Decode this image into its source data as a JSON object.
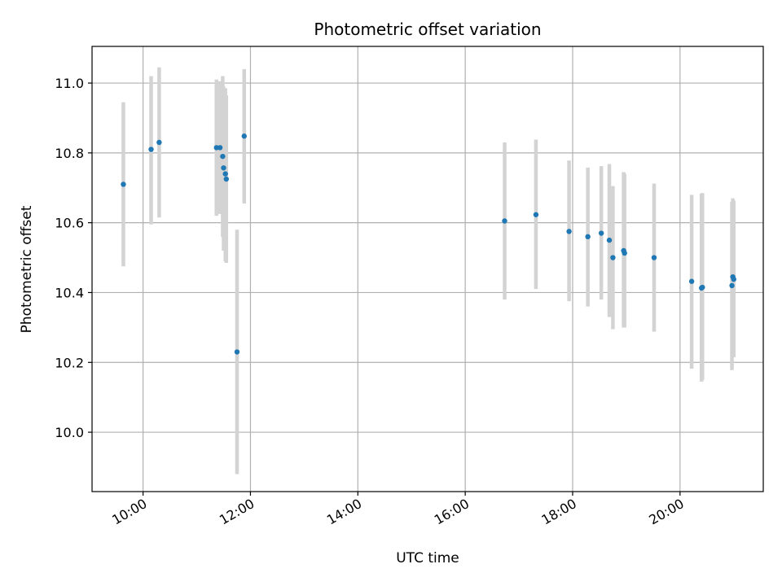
{
  "chart_data": {
    "type": "scatter",
    "title": "Photometric offset variation",
    "xlabel": "UTC time",
    "ylabel": "Photometric offset",
    "x_scale": "time",
    "xlim": [
      "09:03",
      "21:33"
    ],
    "ylim": [
      9.83,
      11.105
    ],
    "x_ticks": [
      "10:00",
      "12:00",
      "14:00",
      "16:00",
      "18:00",
      "20:00"
    ],
    "y_ticks": [
      10.0,
      10.2,
      10.4,
      10.6,
      10.8,
      11.0
    ],
    "grid": true,
    "legend": "none",
    "point_color": "#1f77b4",
    "errorbar_color": "#d3d3d3",
    "points": [
      {
        "t": "09:38",
        "y": 10.71,
        "lo": 10.475,
        "hi": 10.945
      },
      {
        "t": "10:09",
        "y": 10.81,
        "lo": 10.595,
        "hi": 11.02
      },
      {
        "t": "10:18",
        "y": 10.83,
        "lo": 10.615,
        "hi": 11.045
      },
      {
        "t": "11:22",
        "y": 10.815,
        "lo": 10.62,
        "hi": 11.01
      },
      {
        "t": "11:26",
        "y": 10.815,
        "lo": 10.625,
        "hi": 11.005
      },
      {
        "t": "11:29",
        "y": 10.79,
        "lo": 10.56,
        "hi": 11.02
      },
      {
        "t": "11:30",
        "y": 10.757,
        "lo": 10.52,
        "hi": 10.99
      },
      {
        "t": "11:32",
        "y": 10.74,
        "lo": 10.49,
        "hi": 10.985
      },
      {
        "t": "11:33",
        "y": 10.725,
        "lo": 10.485,
        "hi": 10.965
      },
      {
        "t": "11:45",
        "y": 10.23,
        "lo": 9.88,
        "hi": 10.58
      },
      {
        "t": "11:53",
        "y": 10.848,
        "lo": 10.655,
        "hi": 11.04
      },
      {
        "t": "16:44",
        "y": 10.605,
        "lo": 10.38,
        "hi": 10.83
      },
      {
        "t": "17:19",
        "y": 10.623,
        "lo": 10.41,
        "hi": 10.838
      },
      {
        "t": "17:56",
        "y": 10.575,
        "lo": 10.375,
        "hi": 10.778
      },
      {
        "t": "18:17",
        "y": 10.56,
        "lo": 10.36,
        "hi": 10.758
      },
      {
        "t": "18:32",
        "y": 10.57,
        "lo": 10.38,
        "hi": 10.762
      },
      {
        "t": "18:41",
        "y": 10.55,
        "lo": 10.33,
        "hi": 10.768
      },
      {
        "t": "18:45",
        "y": 10.5,
        "lo": 10.295,
        "hi": 10.705
      },
      {
        "t": "18:57",
        "y": 10.52,
        "lo": 10.3,
        "hi": 10.745
      },
      {
        "t": "18:58",
        "y": 10.513,
        "lo": 10.3,
        "hi": 10.74
      },
      {
        "t": "19:31",
        "y": 10.5,
        "lo": 10.288,
        "hi": 10.712
      },
      {
        "t": "20:13",
        "y": 10.432,
        "lo": 10.182,
        "hi": 10.68
      },
      {
        "t": "20:24",
        "y": 10.413,
        "lo": 10.145,
        "hi": 10.683
      },
      {
        "t": "20:25",
        "y": 10.415,
        "lo": 10.15,
        "hi": 10.685
      },
      {
        "t": "20:58",
        "y": 10.42,
        "lo": 10.178,
        "hi": 10.66
      },
      {
        "t": "20:59",
        "y": 10.445,
        "lo": 10.22,
        "hi": 10.67
      },
      {
        "t": "21:00",
        "y": 10.438,
        "lo": 10.215,
        "hi": 10.663
      }
    ]
  }
}
